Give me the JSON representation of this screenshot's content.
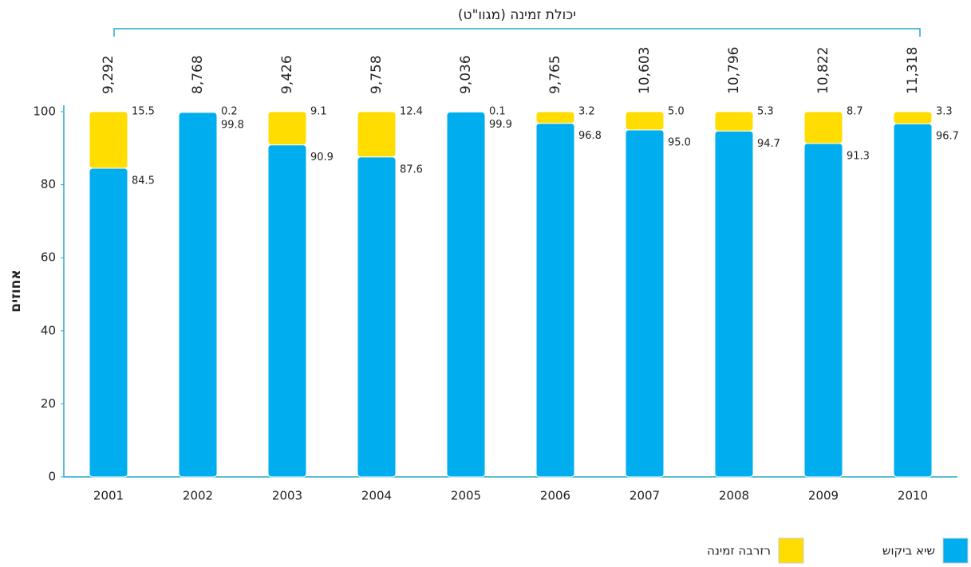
{
  "chart_data": {
    "type": "bar",
    "stacked": true,
    "y_label": "אחוזים",
    "categories": [
      "2001",
      "2002",
      "2003",
      "2004",
      "2005",
      "2006",
      "2007",
      "2008",
      "2009",
      "2010"
    ],
    "series": [
      {
        "name": "שיא ביקוש",
        "color": "#00aeef",
        "values": [
          84.5,
          99.8,
          90.9,
          87.6,
          99.9,
          96.8,
          95.0,
          94.7,
          91.3,
          96.7
        ],
        "value_labels": [
          "84.5",
          "99.8",
          "90.9",
          "87.6",
          "99.9",
          "96.8",
          "95.0",
          "94.7",
          "91.3",
          "96.7"
        ]
      },
      {
        "name": "רזרבה זמינה",
        "color": "#ffdd00",
        "values": [
          15.5,
          0.2,
          9.1,
          12.4,
          0.1,
          3.2,
          5.0,
          5.3,
          8.7,
          3.3
        ],
        "value_labels": [
          "15.5",
          "0.2",
          "9.1",
          "12.4",
          "0.1",
          "3.2",
          "5.0",
          "5.3",
          "8.7",
          "3.3"
        ]
      }
    ],
    "capacity": {
      "name": "יכולת זמינה (מגוו\"ט)",
      "values": [
        9292,
        8768,
        9426,
        9758,
        9036,
        9765,
        10603,
        10796,
        10822,
        11318
      ],
      "value_labels": [
        "9,292",
        "8,768",
        "9,426",
        "9,758",
        "9,036",
        "9,765",
        "10,603",
        "10,796",
        "10,822",
        "11,318"
      ]
    },
    "ylim": [
      0,
      100
    ],
    "yticks": [
      0,
      20,
      40,
      60,
      80,
      100
    ]
  }
}
